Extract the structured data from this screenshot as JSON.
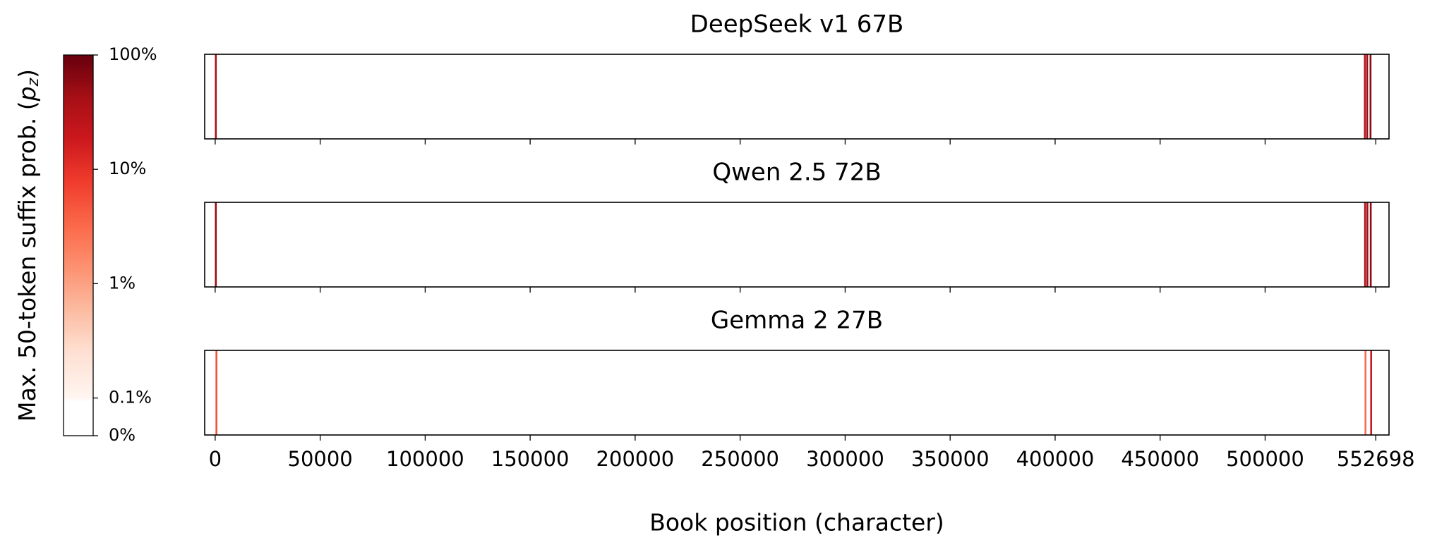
{
  "chart_data": [
    {
      "type": "strip",
      "title": "DeepSeek v1 67B",
      "x": [
        300,
        547500,
        548600,
        550200
      ],
      "values": [
        40,
        30,
        50,
        60
      ]
    },
    {
      "type": "strip",
      "title": "Qwen 2.5 72B",
      "x": [
        300,
        547600,
        548700,
        550300
      ],
      "values": [
        50,
        35,
        45,
        55
      ]
    },
    {
      "type": "strip",
      "title": "Gemma 2 27B",
      "x": [
        600,
        547800,
        550500
      ],
      "values": [
        5,
        3,
        20
      ]
    }
  ],
  "x_axis": {
    "label": "Book position (character)",
    "xlim": [
      -5000,
      559000
    ],
    "xticks": [
      0,
      50000,
      100000,
      150000,
      200000,
      250000,
      300000,
      350000,
      400000,
      450000,
      500000,
      552698
    ]
  },
  "colorbar": {
    "cmap": "Reds",
    "label": {
      "text": "Max. 50-token suffix prob. (",
      "var": "p",
      "sub": "z",
      "close": ")"
    },
    "lim": [
      0,
      100
    ],
    "linthresh": 0.1,
    "ticks": [
      {
        "value": 0,
        "label": "0%"
      },
      {
        "value": 0.1,
        "label": "0.1%"
      },
      {
        "value": 1,
        "label": "1%"
      },
      {
        "value": 10,
        "label": "10%"
      },
      {
        "value": 100,
        "label": "100%"
      }
    ]
  }
}
